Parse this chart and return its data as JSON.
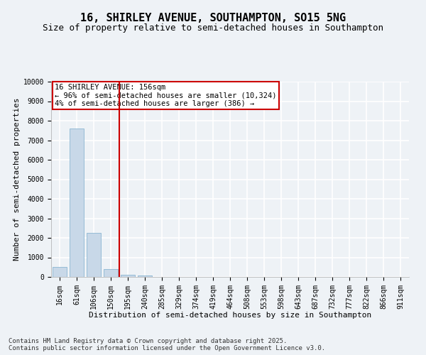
{
  "title": "16, SHIRLEY AVENUE, SOUTHAMPTON, SO15 5NG",
  "subtitle": "Size of property relative to semi-detached houses in Southampton",
  "xlabel": "Distribution of semi-detached houses by size in Southampton",
  "ylabel": "Number of semi-detached properties",
  "categories": [
    "16sqm",
    "61sqm",
    "106sqm",
    "150sqm",
    "195sqm",
    "240sqm",
    "285sqm",
    "329sqm",
    "374sqm",
    "419sqm",
    "464sqm",
    "508sqm",
    "553sqm",
    "598sqm",
    "643sqm",
    "687sqm",
    "732sqm",
    "777sqm",
    "822sqm",
    "866sqm",
    "911sqm"
  ],
  "values": [
    500,
    7600,
    2250,
    400,
    120,
    75,
    10,
    5,
    2,
    1,
    1,
    0,
    0,
    0,
    0,
    0,
    0,
    0,
    0,
    0,
    0
  ],
  "bar_color": "#c8d8e8",
  "bar_edge_color": "#7aaccc",
  "background_color": "#eef2f6",
  "grid_color": "#ffffff",
  "vline_x_index": 3.5,
  "vline_color": "#cc0000",
  "annotation_box_text": "16 SHIRLEY AVENUE: 156sqm\n← 96% of semi-detached houses are smaller (10,324)\n4% of semi-detached houses are larger (386) →",
  "annotation_box_color": "#cc0000",
  "ylim": [
    0,
    10000
  ],
  "yticks": [
    0,
    1000,
    2000,
    3000,
    4000,
    5000,
    6000,
    7000,
    8000,
    9000,
    10000
  ],
  "footer": "Contains HM Land Registry data © Crown copyright and database right 2025.\nContains public sector information licensed under the Open Government Licence v3.0.",
  "title_fontsize": 11,
  "subtitle_fontsize": 9,
  "xlabel_fontsize": 8,
  "ylabel_fontsize": 8,
  "tick_fontsize": 7,
  "annotation_fontsize": 7.5,
  "footer_fontsize": 6.5
}
